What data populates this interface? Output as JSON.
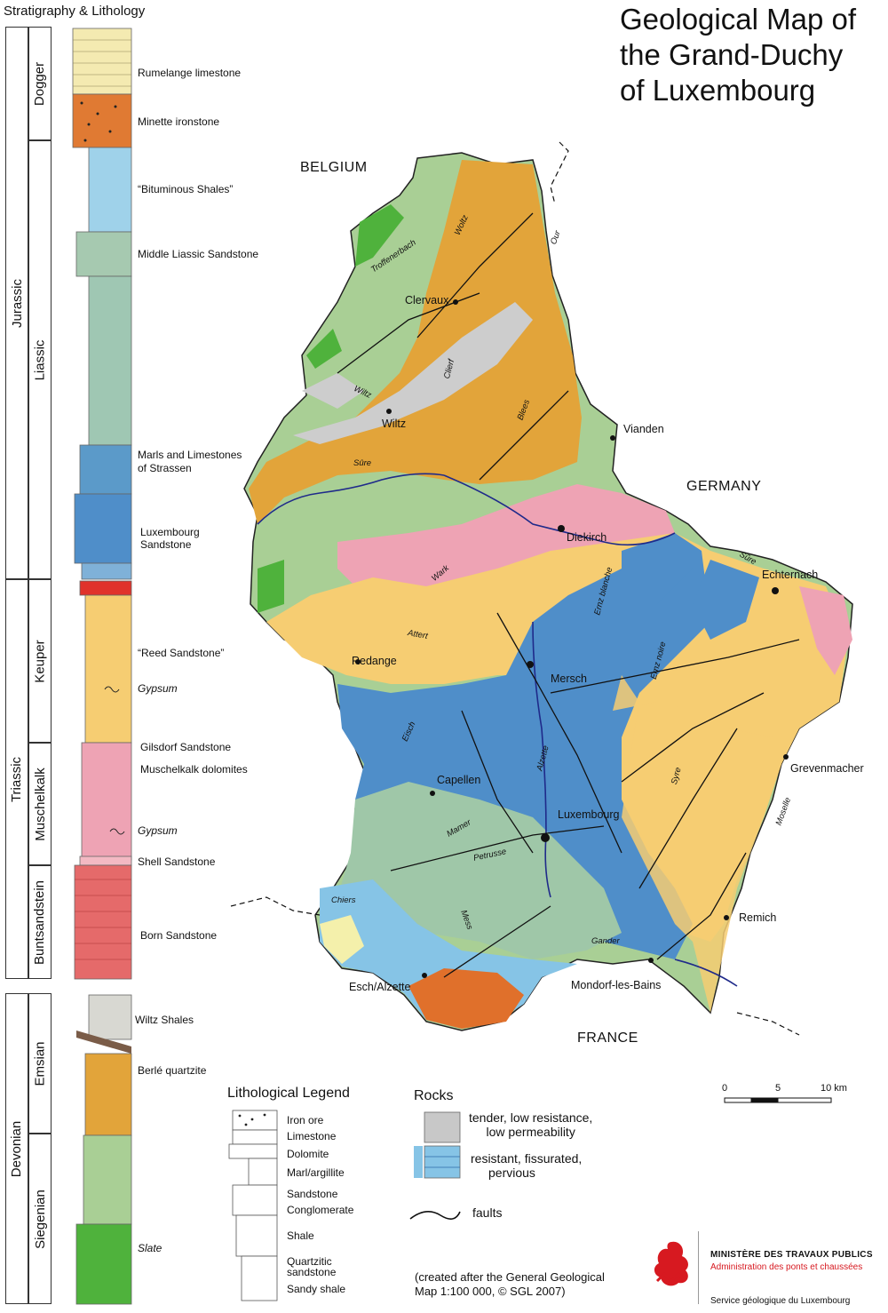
{
  "title": {
    "line1": "Geological Map of",
    "line2": "the   Grand-Duchy",
    "line3": "of Luxembourg"
  },
  "stratigraphy_title": "Stratigraphy & Lithology",
  "periods": [
    {
      "name": "Jurassic"
    },
    {
      "name": "Triassic"
    },
    {
      "name": "Devonian"
    }
  ],
  "epochs": [
    {
      "name": "Dogger"
    },
    {
      "name": "Liassic"
    },
    {
      "name": "Keuper"
    },
    {
      "name": "Muschelkalk"
    },
    {
      "name": "Buntsandstein"
    },
    {
      "name": "Emsian"
    },
    {
      "name": "Siegenian"
    }
  ],
  "units": [
    {
      "label": "Rumelange limestone"
    },
    {
      "label": "Minette ironstone"
    },
    {
      "label": "“Bituminous Shales”"
    },
    {
      "label": "Middle Liassic Sandstone"
    },
    {
      "label": "Marls and Limestones"
    },
    {
      "label": "of  Strassen"
    },
    {
      "label": "Luxembourg"
    },
    {
      "label": "Sandstone"
    },
    {
      "label": "“Reed Sandstone”"
    },
    {
      "label": "Gypsum"
    },
    {
      "label": "Gilsdorf Sandstone"
    },
    {
      "label": "Muschelkalk dolomites"
    },
    {
      "label": "Gypsum"
    },
    {
      "label": "Shell Sandstone"
    },
    {
      "label": "Born Sandstone"
    },
    {
      "label": "Wiltz Shales"
    },
    {
      "label": "Berlé quartzite"
    },
    {
      "label": "Slate"
    }
  ],
  "countries": {
    "belgium": "BELGIUM",
    "germany": "GERMANY",
    "france": "FRANCE"
  },
  "towns": [
    {
      "name": "Clervaux"
    },
    {
      "name": "Wiltz"
    },
    {
      "name": "Vianden"
    },
    {
      "name": "Diekirch"
    },
    {
      "name": "Echternach"
    },
    {
      "name": "Redange"
    },
    {
      "name": "Mersch"
    },
    {
      "name": "Capellen"
    },
    {
      "name": "Luxembourg"
    },
    {
      "name": "Grevenmacher"
    },
    {
      "name": "Remich"
    },
    {
      "name": "Esch/Alzette"
    },
    {
      "name": "Mondorf-les-Bains"
    }
  ],
  "rivers": [
    {
      "name": "Troffenerbach"
    },
    {
      "name": "Woltz"
    },
    {
      "name": "Our"
    },
    {
      "name": "Clierf"
    },
    {
      "name": "Wiltz"
    },
    {
      "name": "Blees"
    },
    {
      "name": "Sûre"
    },
    {
      "name": "Wark"
    },
    {
      "name": "Attert"
    },
    {
      "name": "Ernz blanche"
    },
    {
      "name": "Ernz noire"
    },
    {
      "name": "Sûre"
    },
    {
      "name": "Eisch"
    },
    {
      "name": "Alzette"
    },
    {
      "name": "Syre"
    },
    {
      "name": "Moselle"
    },
    {
      "name": "Mamer"
    },
    {
      "name": "Petrusse"
    },
    {
      "name": "Chiers"
    },
    {
      "name": "Mess"
    },
    {
      "name": "Gander"
    }
  ],
  "lithological_legend": {
    "title": "Lithological Legend",
    "items": [
      {
        "label": "Iron ore"
      },
      {
        "label": "Limestone"
      },
      {
        "label": "Dolomite"
      },
      {
        "label": "Marl/argillite"
      },
      {
        "label": "Sandstone"
      },
      {
        "label": "Conglomerate"
      },
      {
        "label": "Shale"
      },
      {
        "label": "Quartzitic"
      },
      {
        "label": "sandstone"
      },
      {
        "label": "Sandy shale"
      }
    ]
  },
  "rocks_legend": {
    "title": "Rocks",
    "tender_l1": "tender, low resistance,",
    "tender_l2": "low permeability",
    "resistant_l1": "resistant, fissurated,",
    "resistant_l2": "pervious",
    "faults": "faults"
  },
  "scale": {
    "t0": "0",
    "t5": "5",
    "t10": "10 km"
  },
  "credit": {
    "line1": "(created after the General Geological",
    "line2": "Map  1:100 000, © SGL 2007)"
  },
  "ministry": {
    "line1": "MINISTÈRE DES TRAVAUX PUBLICS",
    "line2": "Administration des ponts et chaussées",
    "line3": "Service géologique du Luxembourg"
  },
  "colors": {
    "ochre": "#e2a43a",
    "greenLight": "#a9cf95",
    "greenBright": "#4fb23c",
    "grey": "#cdcdcd",
    "pink": "#eea3b4",
    "yellow": "#f6cd72",
    "blue": "#4f8ec9",
    "blueLight": "#86c4e6",
    "sage": "#9fc7a8",
    "orange": "#e0702b",
    "red": "#e0322b",
    "paleYellow": "#f4f0ab",
    "river": "#1f2a8a"
  }
}
